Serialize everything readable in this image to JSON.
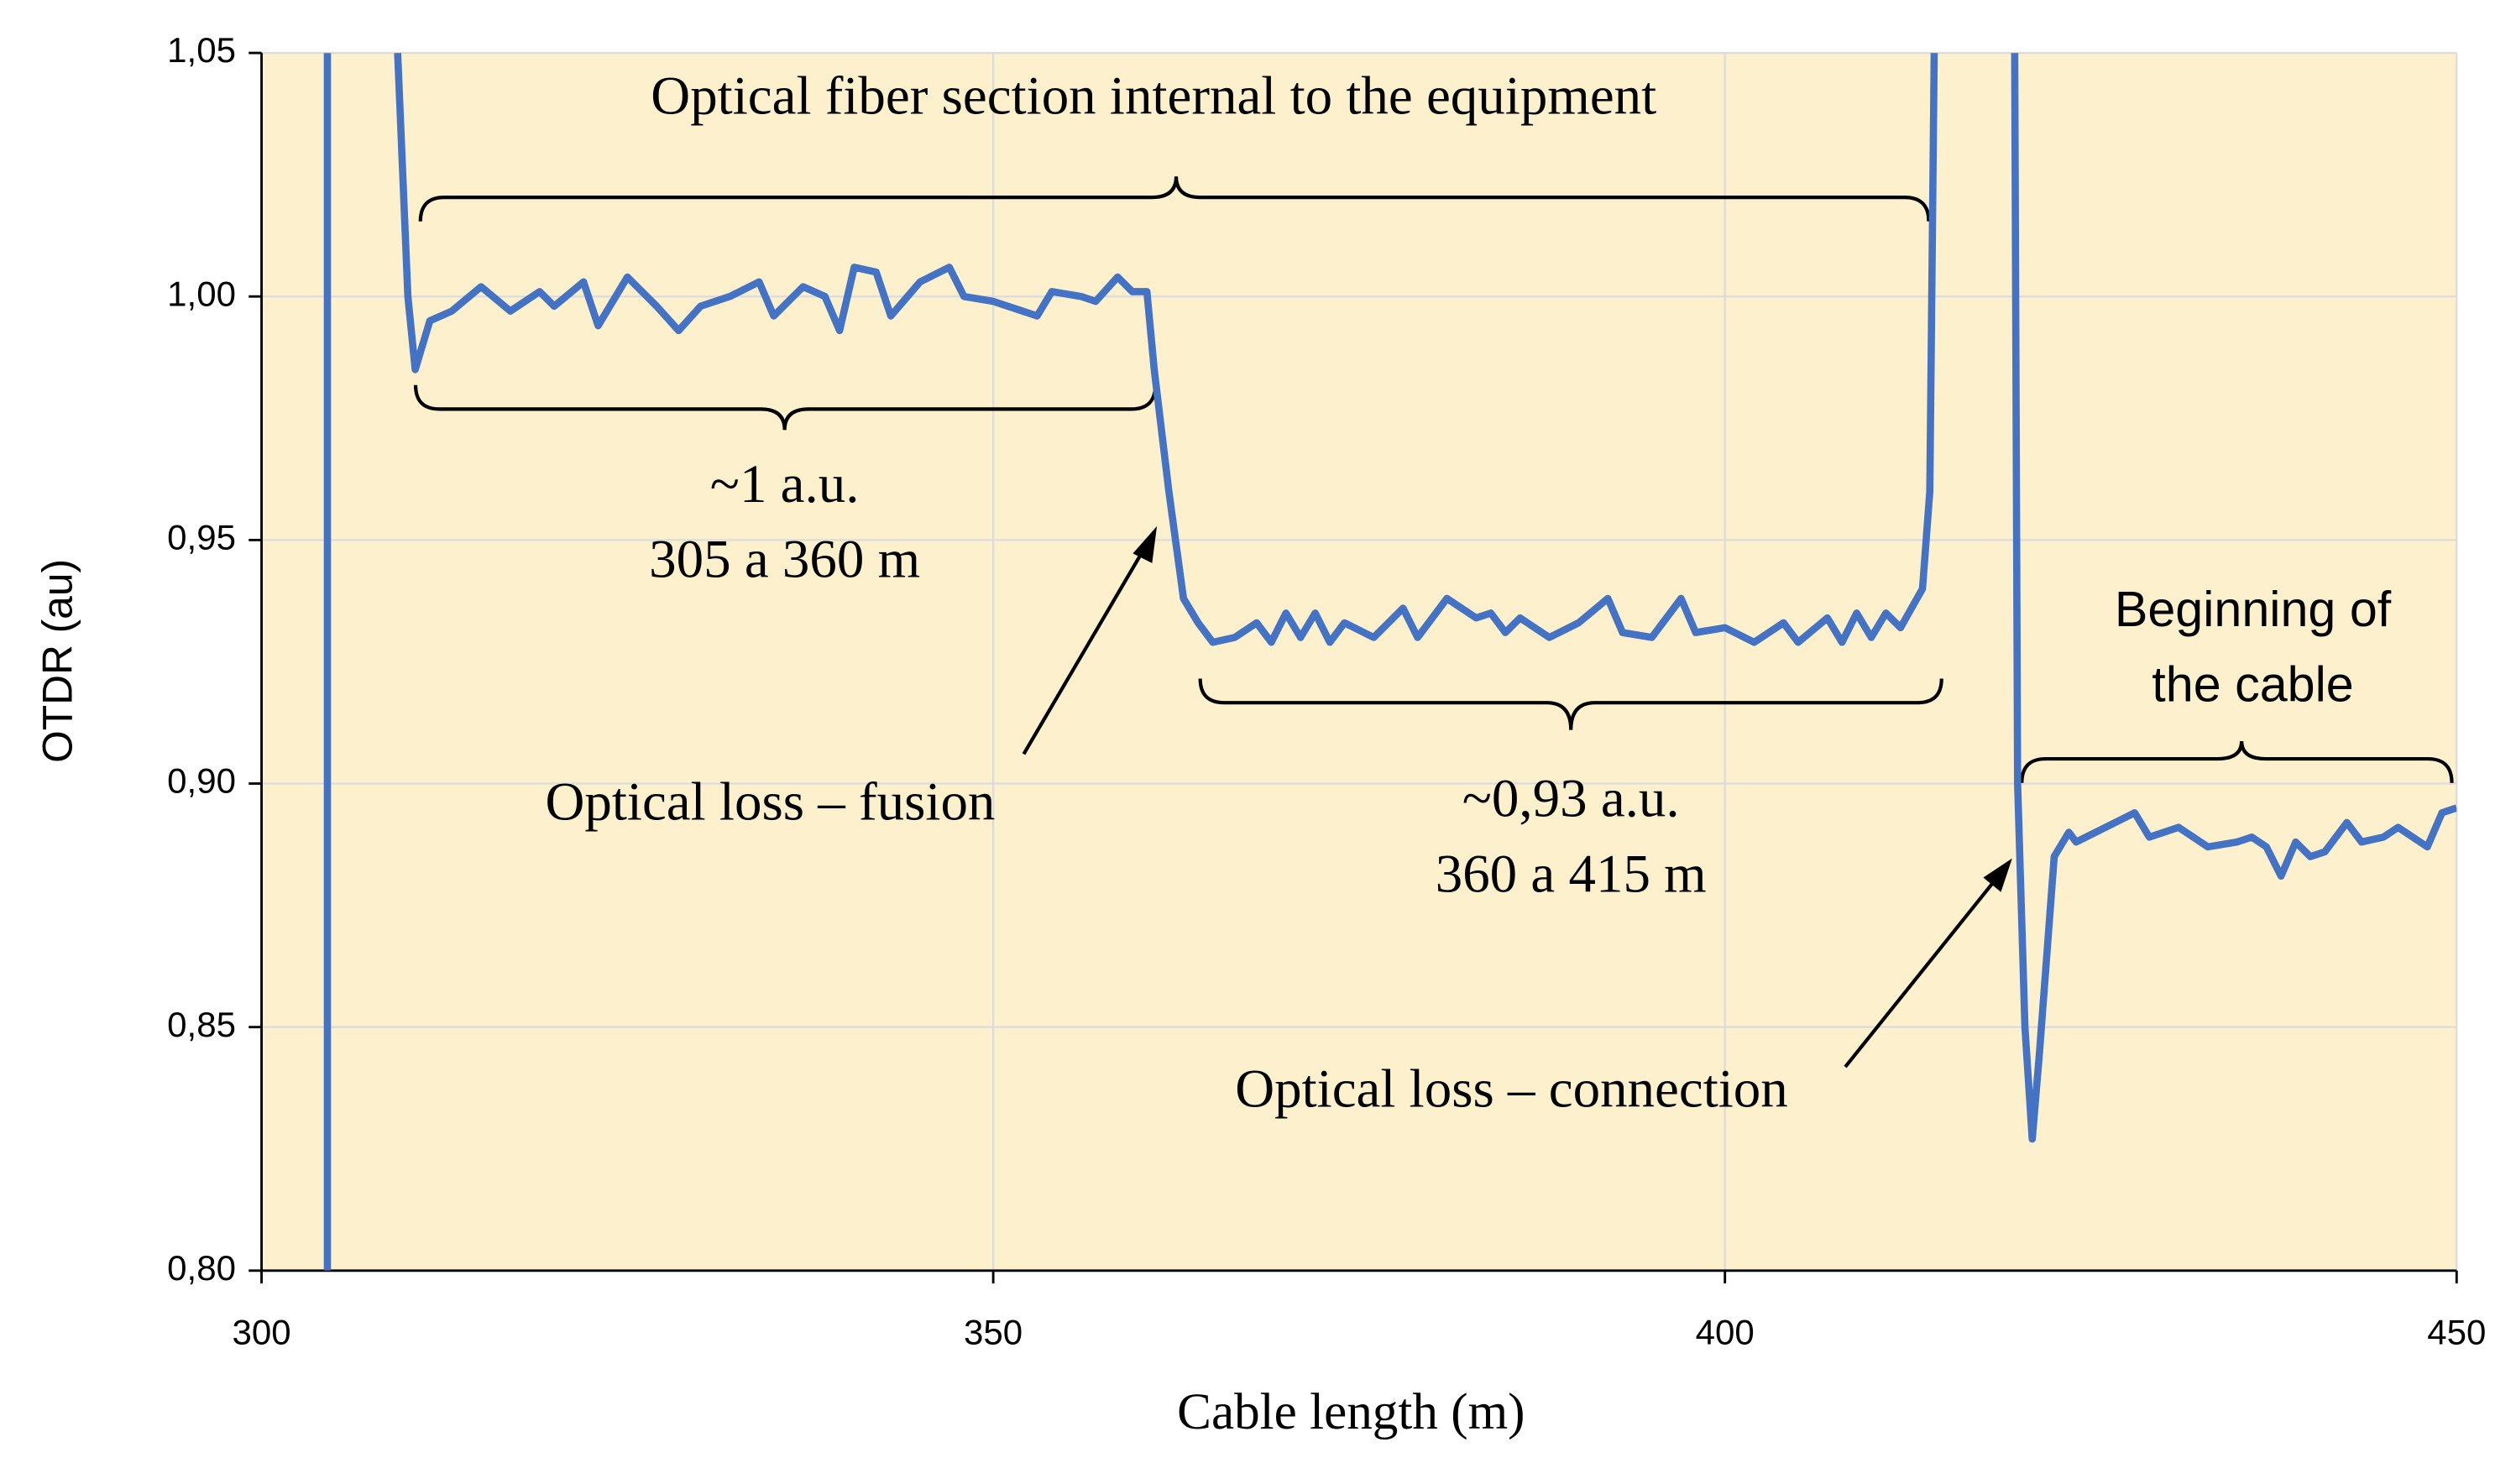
{
  "chart_data": {
    "type": "line",
    "xlabel": "Cable length (m)",
    "ylabel": "OTDR (au)",
    "xlim": [
      300,
      450
    ],
    "ylim": [
      0.8,
      1.05
    ],
    "xticks": [
      300,
      350,
      400,
      450
    ],
    "yticks": [
      {
        "value": 0.8,
        "label": "0,80"
      },
      {
        "value": 0.85,
        "label": "0,85"
      },
      {
        "value": 0.9,
        "label": "0,90"
      },
      {
        "value": 0.95,
        "label": "0,95"
      },
      {
        "value": 1.0,
        "label": "1,00"
      },
      {
        "value": 1.05,
        "label": "1,05"
      }
    ],
    "grid": true,
    "background": "#fdf0cc",
    "annotations": [
      "Optical fiber section internal to the equipment",
      "~1 a.u.",
      "305 a 360 m",
      "Optical loss – fusion",
      "~0,93 a.u.",
      "360 a 415 m",
      "Optical loss – connection",
      "Beginning of",
      "the cable"
    ],
    "x": [
      304.5,
      304.5,
      null,
      309.3,
      310,
      310.5,
      311.5,
      313,
      315,
      317,
      319,
      320,
      322,
      323,
      325,
      327,
      328.5,
      330,
      332,
      334,
      335,
      337,
      338.5,
      339.5,
      340.5,
      342,
      343,
      345,
      347,
      348,
      350,
      352,
      353,
      354,
      356,
      357,
      358.5,
      359.5,
      360.5,
      361,
      362,
      363,
      364,
      365,
      366.5,
      368,
      369,
      370,
      371,
      372,
      373,
      374,
      376,
      378,
      379,
      381,
      383,
      384,
      385,
      386,
      388,
      390,
      392,
      393,
      395,
      397,
      398,
      400,
      402,
      404,
      405,
      407,
      408,
      409,
      410,
      411,
      412,
      413.5,
      414,
      414.3,
      null,
      419.8,
      420,
      420.5,
      421,
      421.5,
      422.5,
      423.5,
      424,
      426,
      428,
      429,
      431,
      433,
      435,
      436,
      437,
      438,
      439,
      440,
      441,
      442.5,
      443.5,
      445,
      446,
      448,
      449,
      450
    ],
    "series": [
      {
        "color": "#4472c4",
        "values": [
          0.8,
          1.05,
          null,
          1.05,
          1.0,
          0.985,
          0.995,
          0.997,
          1.002,
          0.997,
          1.001,
          0.998,
          1.003,
          0.994,
          1.004,
          0.998,
          0.993,
          0.998,
          1.0,
          1.003,
          0.996,
          1.002,
          1.0,
          0.993,
          1.006,
          1.005,
          0.996,
          1.003,
          1.006,
          1.0,
          0.999,
          0.997,
          0.996,
          1.001,
          1.0,
          0.999,
          1.004,
          1.001,
          1.001,
          0.985,
          0.96,
          0.938,
          0.933,
          0.929,
          0.93,
          0.933,
          0.929,
          0.935,
          0.93,
          0.935,
          0.929,
          0.933,
          0.93,
          0.936,
          0.93,
          0.938,
          0.934,
          0.935,
          0.931,
          0.934,
          0.93,
          0.933,
          0.938,
          0.931,
          0.93,
          0.938,
          0.931,
          0.932,
          0.929,
          0.933,
          0.929,
          0.934,
          0.929,
          0.935,
          0.93,
          0.935,
          0.932,
          0.94,
          0.96,
          1.05,
          null,
          1.05,
          0.9,
          0.85,
          0.827,
          0.845,
          0.885,
          0.89,
          0.888,
          0.891,
          0.894,
          0.889,
          0.891,
          0.887,
          0.888,
          0.889,
          0.887,
          0.881,
          0.888,
          0.885,
          0.886,
          0.892,
          0.888,
          0.889,
          0.891,
          0.887,
          0.894,
          0.895
        ]
      }
    ]
  }
}
